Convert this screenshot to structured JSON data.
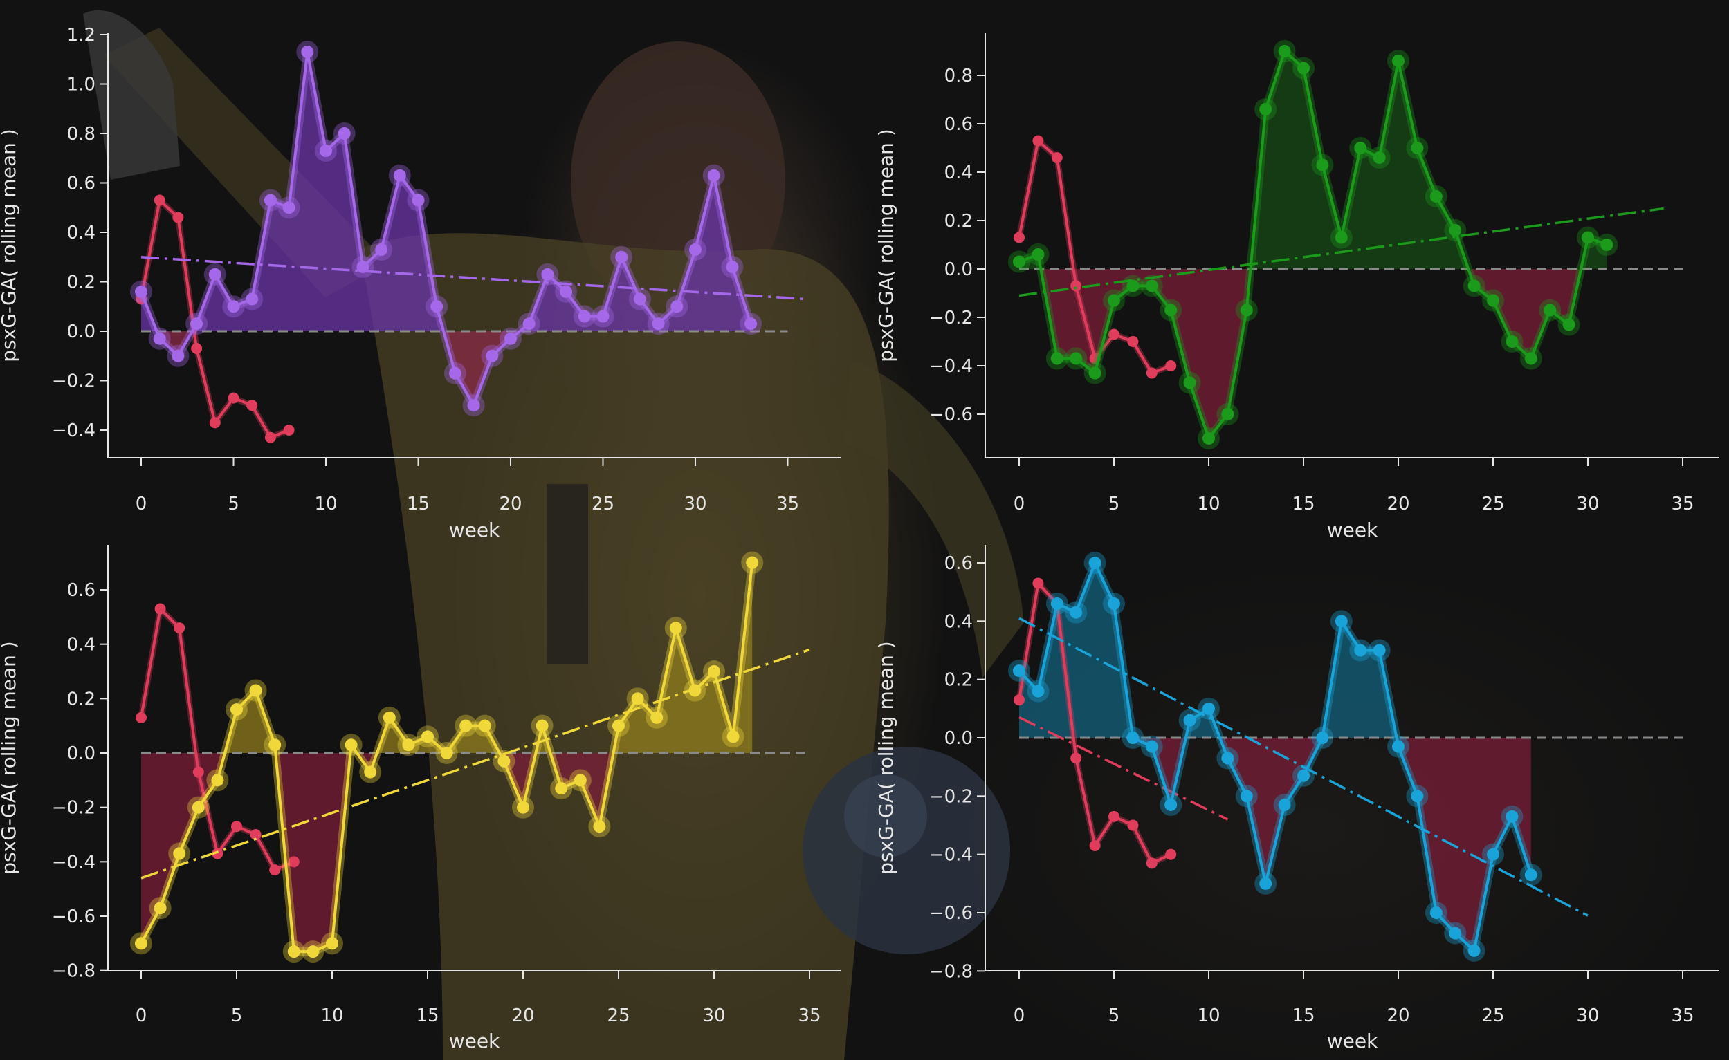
{
  "chart_data": [
    {
      "type": "line",
      "xlabel": "week",
      "ylabel": "psxG-GA( rolling mean )",
      "xlim": [
        -1.8,
        37.8
      ],
      "ylim": [
        -0.52,
        1.2
      ],
      "xticks": [
        0,
        5,
        10,
        15,
        20,
        25,
        30,
        35
      ],
      "yticks": [
        -0.4,
        -0.2,
        0.0,
        0.2,
        0.4,
        0.6,
        0.8,
        1.0,
        1.2
      ],
      "baseline": {
        "y": 0.0,
        "x_range": [
          0,
          35
        ],
        "style": "dashed",
        "color": "#8a8a8a"
      },
      "series": [
        {
          "color": "#a468e8",
          "x": [
            0,
            1,
            2,
            3,
            4,
            5,
            6,
            7,
            8,
            9,
            10,
            11,
            12,
            13,
            14,
            15,
            16,
            17,
            18,
            19,
            20,
            21,
            22,
            23,
            24,
            25,
            26,
            27,
            28,
            29,
            30,
            31,
            32,
            33
          ],
          "values": [
            0.16,
            -0.03,
            -0.1,
            0.03,
            0.23,
            0.1,
            0.13,
            0.53,
            0.5,
            1.13,
            0.73,
            0.8,
            0.26,
            0.33,
            0.63,
            0.53,
            0.1,
            -0.17,
            -0.3,
            -0.1,
            -0.03,
            0.03,
            0.23,
            0.16,
            0.06,
            0.06,
            0.3,
            0.13,
            0.03,
            0.1,
            0.33,
            0.63,
            0.26,
            0.03
          ],
          "trend": {
            "x": [
              0,
              36
            ],
            "y": [
              0.3,
              0.13
            ]
          },
          "fill_positive": "#6a35a8",
          "fill_negative": "#8a2a44"
        },
        {
          "color": "#e03c5c",
          "x": [
            0,
            1,
            2,
            3,
            4,
            5,
            6,
            7,
            8
          ],
          "values": [
            0.13,
            0.53,
            0.46,
            -0.07,
            -0.37,
            -0.27,
            -0.3,
            -0.43,
            -0.4
          ]
        }
      ]
    },
    {
      "type": "line",
      "xlabel": "week",
      "ylabel": "psxG-GA( rolling mean )",
      "xlim": [
        -1.8,
        37.8
      ],
      "ylim": [
        -0.78,
        0.98
      ],
      "xticks": [
        0,
        5,
        10,
        15,
        20,
        25,
        30,
        35
      ],
      "yticks": [
        -0.6,
        -0.4,
        -0.2,
        0.0,
        0.2,
        0.4,
        0.6,
        0.8
      ],
      "baseline": {
        "y": 0.0,
        "x_range": [
          0,
          35
        ],
        "style": "dashed",
        "color": "#8a8a8a"
      },
      "series": [
        {
          "color": "#1b9a1b",
          "x": [
            0,
            1,
            2,
            3,
            4,
            5,
            6,
            7,
            8,
            9,
            10,
            11,
            12,
            13,
            14,
            15,
            16,
            17,
            18,
            19,
            20,
            21,
            22,
            23,
            24,
            25,
            26,
            27,
            28,
            29,
            30,
            31
          ],
          "values": [
            0.03,
            0.06,
            -0.37,
            -0.37,
            -0.43,
            -0.13,
            -0.07,
            -0.07,
            -0.17,
            -0.47,
            -0.7,
            -0.6,
            -0.17,
            0.66,
            0.9,
            0.83,
            0.43,
            0.13,
            0.5,
            0.46,
            0.86,
            0.5,
            0.3,
            0.16,
            -0.07,
            -0.13,
            -0.3,
            -0.37,
            -0.17,
            -0.23,
            0.13,
            0.1
          ],
          "trend": {
            "x": [
              0,
              34
            ],
            "y": [
              -0.11,
              0.25
            ]
          },
          "fill_positive": "#164a16",
          "fill_negative": "#7a1e38"
        },
        {
          "color": "#e03c5c",
          "x": [
            0,
            1,
            2,
            3,
            4,
            5,
            6,
            7,
            8
          ],
          "values": [
            0.13,
            0.53,
            0.46,
            -0.07,
            -0.37,
            -0.27,
            -0.3,
            -0.43,
            -0.4
          ]
        }
      ]
    },
    {
      "type": "line",
      "xlabel": "week",
      "ylabel": "psxG-GA( rolling mean )",
      "xlim": [
        -1.8,
        37.8
      ],
      "ylim": [
        -0.8,
        0.78
      ],
      "xticks": [
        0,
        5,
        10,
        15,
        20,
        25,
        30,
        35
      ],
      "yticks": [
        -0.8,
        -0.6,
        -0.4,
        -0.2,
        0.0,
        0.2,
        0.4,
        0.6
      ],
      "baseline": {
        "y": 0.0,
        "x_range": [
          0,
          35
        ],
        "style": "dashed",
        "color": "#8a8a8a"
      },
      "series": [
        {
          "color": "#f0d83a",
          "x": [
            0,
            1,
            2,
            3,
            4,
            5,
            6,
            7,
            8,
            9,
            10,
            11,
            12,
            13,
            14,
            15,
            16,
            17,
            18,
            19,
            20,
            21,
            22,
            23,
            24,
            25,
            26,
            27,
            28,
            29,
            30,
            31,
            32
          ],
          "values": [
            -0.7,
            -0.57,
            -0.37,
            -0.2,
            -0.1,
            0.16,
            0.23,
            0.03,
            -0.73,
            -0.73,
            -0.7,
            0.03,
            -0.07,
            0.13,
            0.03,
            0.06,
            0.0,
            0.1,
            0.1,
            -0.03,
            -0.2,
            0.1,
            -0.13,
            -0.1,
            -0.27,
            0.1,
            0.2,
            0.13,
            0.46,
            0.23,
            0.3,
            0.06,
            0.7
          ],
          "trend": {
            "x": [
              0,
              35
            ],
            "y": [
              -0.46,
              0.38
            ]
          },
          "fill_positive": "#8f7c1c",
          "fill_negative": "#7a1e38"
        },
        {
          "color": "#e03c5c",
          "x": [
            0,
            1,
            2,
            3,
            4,
            5,
            6,
            7,
            8
          ],
          "values": [
            0.13,
            0.53,
            0.46,
            -0.07,
            -0.37,
            -0.27,
            -0.3,
            -0.43,
            -0.4
          ]
        }
      ]
    },
    {
      "type": "line",
      "xlabel": "week",
      "ylabel": "psxG-GA( rolling mean )",
      "xlim": [
        -1.8,
        37.8
      ],
      "ylim": [
        -0.8,
        0.66
      ],
      "xticks": [
        0,
        5,
        10,
        15,
        20,
        25,
        30,
        35
      ],
      "yticks": [
        -0.8,
        -0.6,
        -0.4,
        -0.2,
        0.0,
        0.2,
        0.4,
        0.6
      ],
      "baseline": {
        "y": 0.0,
        "x_range": [
          0,
          35
        ],
        "style": "dashed",
        "color": "#8a8a8a"
      },
      "series": [
        {
          "color": "#1aa3d8",
          "x": [
            0,
            1,
            2,
            3,
            4,
            5,
            6,
            7,
            8,
            9,
            10,
            11,
            12,
            13,
            14,
            15,
            16,
            17,
            18,
            19,
            20,
            21,
            22,
            23,
            24,
            25,
            26,
            27
          ],
          "values": [
            0.23,
            0.16,
            0.46,
            0.43,
            0.6,
            0.46,
            0.0,
            -0.03,
            -0.23,
            0.06,
            0.1,
            -0.07,
            -0.2,
            -0.5,
            -0.23,
            -0.13,
            0.0,
            0.4,
            0.3,
            0.3,
            -0.03,
            -0.2,
            -0.6,
            -0.67,
            -0.73,
            -0.4,
            -0.27,
            -0.47
          ],
          "trend": {
            "x": [
              0,
              30
            ],
            "y": [
              0.41,
              -0.61
            ]
          },
          "fill_positive": "#13607c",
          "fill_negative": "#7a1e38"
        },
        {
          "color": "#e03c5c",
          "x": [
            0,
            1,
            2,
            3,
            4,
            5,
            6,
            7,
            8
          ],
          "values": [
            0.13,
            0.53,
            0.46,
            -0.07,
            -0.37,
            -0.27,
            -0.3,
            -0.43,
            -0.4
          ],
          "trend": {
            "x": [
              0,
              11
            ],
            "y": [
              0.07,
              -0.28
            ]
          }
        }
      ]
    }
  ]
}
